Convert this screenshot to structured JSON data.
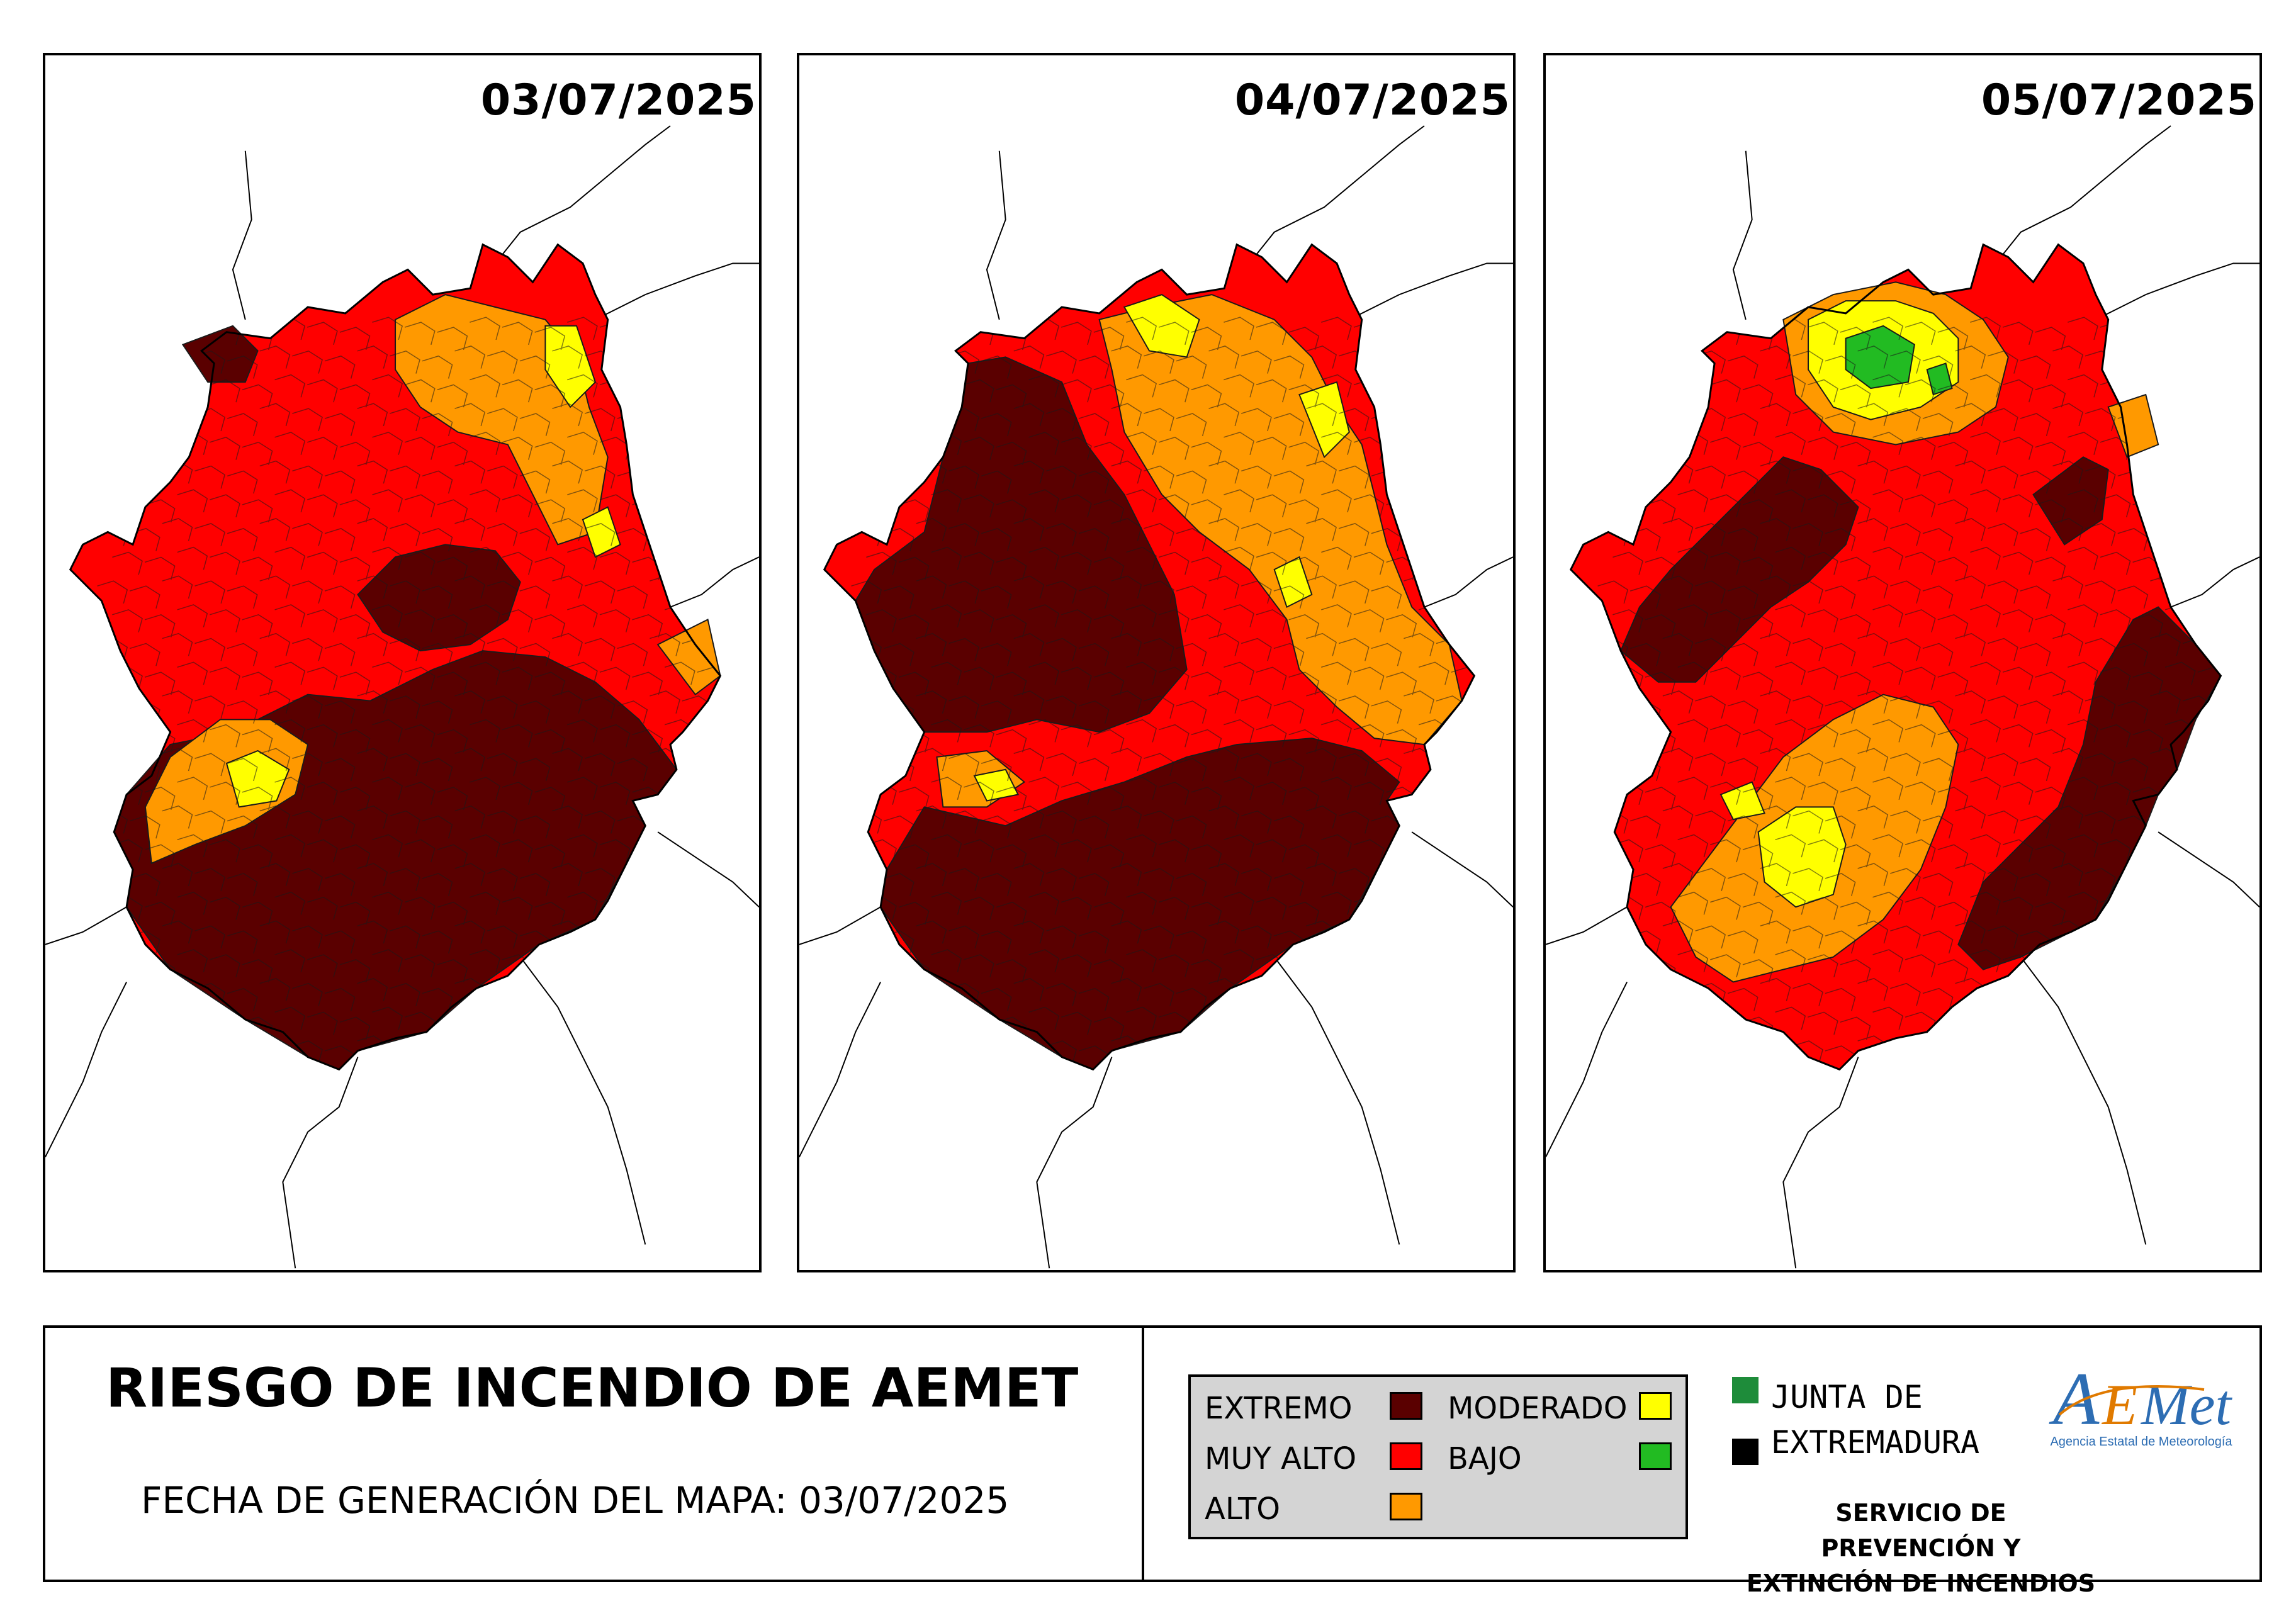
{
  "colors": {
    "extremo": "#5a0000",
    "muy_alto": "#ff0000",
    "alto": "#ff9900",
    "moderado": "#ffff00",
    "bajo": "#22bb22",
    "border": "#1a1a1a",
    "outline": "#000000"
  },
  "panels": [
    {
      "date": "03/07/2025"
    },
    {
      "date": "04/07/2025"
    },
    {
      "date": "05/07/2025"
    }
  ],
  "footer": {
    "title": "RIESGO DE INCENDIO DE AEMET",
    "generation_date": "FECHA DE GENERACIÓN DEL MAPA: 03/07/2025",
    "legend": {
      "extremo": "EXTREMO",
      "muy_alto": "MUY ALTO",
      "alto": "ALTO",
      "moderado": "MODERADO",
      "bajo": "BAJO"
    },
    "junta_line1": "JUNTA DE",
    "junta_line2": "EXTREMADURA",
    "aemet_logo": "AEMet",
    "aemet_subtitle": "Agencia Estatal de Meteorología",
    "service_line1": "SERVICIO DE PREVENCIÓN Y",
    "service_line2": "EXTINCIÓN DE INCENDIOS"
  }
}
